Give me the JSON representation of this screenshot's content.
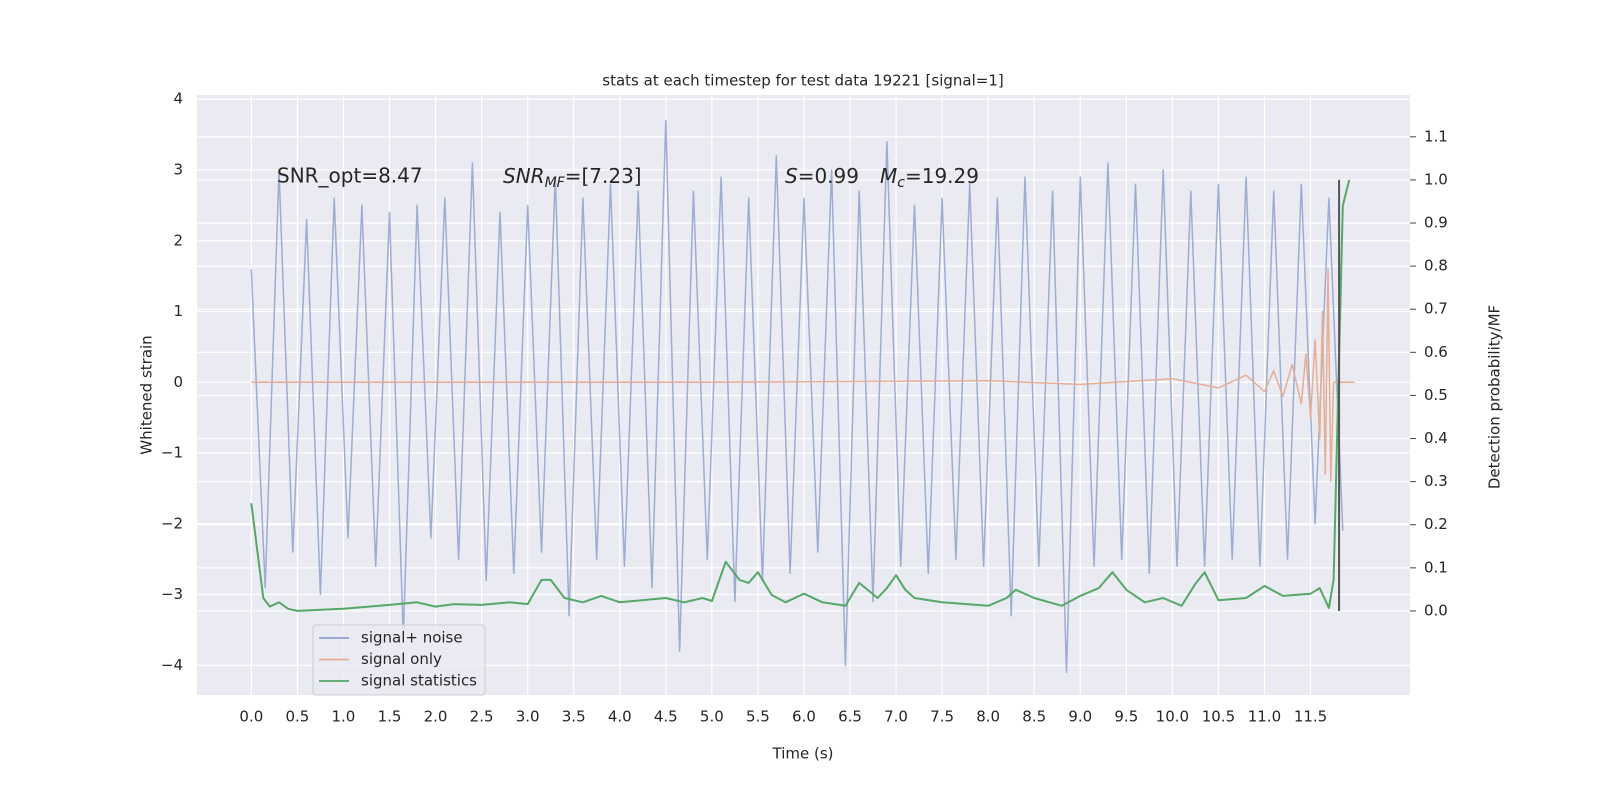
{
  "chart_data": {
    "type": "line",
    "title": "stats at each timestep for test data 19221 [signal=1]",
    "xlabel": "Time (s)",
    "ylabel": "Whitened strain",
    "y2label": "Detection probability/MF",
    "snr_opt": "SNR_opt=8.47",
    "snr_mf": {
      "base": "SNR",
      "sub": "MF",
      "tail": "=[7.23]"
    },
    "s_stat": {
      "base": "S",
      "tail": "=0.99"
    },
    "chirp_mass": {
      "base": "M",
      "sub": "c",
      "tail": "=19.29"
    },
    "xlim": [
      -0.59,
      12.58
    ],
    "ylim": [
      -4.42,
      4.06
    ],
    "y2lim": [
      -0.195,
      1.197
    ],
    "xticks": [
      {
        "value": 0,
        "label": "0.0"
      },
      0.5,
      {
        "value": 1,
        "label": "1.0"
      },
      1.5,
      {
        "value": 2,
        "label": "2.0"
      },
      2.5,
      {
        "value": 3,
        "label": "3.0"
      },
      3.5,
      {
        "value": 4,
        "label": "4.0"
      },
      4.5,
      {
        "value": 5,
        "label": "5.0"
      },
      5.5,
      {
        "value": 6,
        "label": "6.0"
      },
      6.5,
      {
        "value": 7,
        "label": "7.0"
      },
      7.5,
      {
        "value": 8,
        "label": "8.0"
      },
      8.5,
      {
        "value": 9,
        "label": "9.0"
      },
      9.5,
      {
        "value": 10,
        "label": "10.0"
      },
      10.5,
      {
        "value": 11,
        "label": "11.0"
      },
      11.5
    ],
    "yticks": [
      {
        "value": -4,
        "label": "−4"
      },
      {
        "value": -3,
        "label": "−3"
      },
      {
        "value": -2,
        "label": "−2"
      },
      {
        "value": -1,
        "label": "−1"
      },
      0,
      1,
      2,
      3,
      4
    ],
    "y2ticks": [
      {
        "value": 0,
        "label": "0.0"
      },
      0.1,
      0.2,
      0.3,
      0.4,
      0.5,
      0.6,
      0.7,
      0.8,
      0.9,
      {
        "value": 1,
        "label": "1.0"
      },
      1.1
    ],
    "grid": true,
    "legend": "lower left",
    "series": [
      {
        "name": "signal+ noise",
        "color": "#8ea1cc",
        "x": [
          0,
          0.15,
          0.3,
          0.45,
          0.6,
          0.75,
          0.9,
          1.05,
          1.2,
          1.35,
          1.5,
          1.65,
          1.8,
          1.95,
          2.1,
          2.25,
          2.4,
          2.55,
          2.7,
          2.85,
          3,
          3.15,
          3.3,
          3.45,
          3.6,
          3.75,
          3.9,
          4.05,
          4.2,
          4.35,
          4.5,
          4.65,
          4.8,
          4.95,
          5.1,
          5.25,
          5.4,
          5.55,
          5.7,
          5.85,
          6,
          6.15,
          6.3,
          6.45,
          6.6,
          6.75,
          6.9,
          7.05,
          7.2,
          7.35,
          7.5,
          7.65,
          7.8,
          7.95,
          8.1,
          8.25,
          8.4,
          8.55,
          8.7,
          8.85,
          9,
          9.15,
          9.3,
          9.45,
          9.6,
          9.75,
          9.9,
          10.05,
          10.2,
          10.35,
          10.5,
          10.65,
          10.8,
          10.95,
          11.1,
          11.25,
          11.4,
          11.55,
          11.7,
          11.85
        ],
        "values": [
          1.6,
          -2.9,
          3.0,
          -2.4,
          2.3,
          -3.0,
          2.6,
          -2.2,
          2.5,
          -2.6,
          2.4,
          -3.6,
          2.5,
          -2.2,
          2.6,
          -2.5,
          3.1,
          -2.8,
          2.4,
          -2.7,
          2.5,
          -2.4,
          2.9,
          -3.3,
          2.6,
          -2.5,
          2.8,
          -2.6,
          2.7,
          -2.9,
          3.7,
          -3.8,
          2.7,
          -2.5,
          2.9,
          -3.1,
          2.6,
          -2.8,
          3.2,
          -2.7,
          2.6,
          -2.4,
          3.0,
          -4.0,
          2.7,
          -3.1,
          3.4,
          -2.6,
          2.5,
          -2.7,
          2.6,
          -2.5,
          2.8,
          -2.6,
          2.6,
          -3.3,
          2.9,
          -2.6,
          2.7,
          -4.1,
          2.9,
          -2.6,
          3.1,
          -2.5,
          2.8,
          -2.7,
          3.0,
          -2.6,
          2.7,
          -2.6,
          2.8,
          -2.5,
          2.9,
          -2.6,
          2.7,
          -2.5,
          2.8,
          -2.0,
          2.6,
          -2.1
        ]
      },
      {
        "name": "signal only",
        "color": "#e5ae95",
        "x": [
          0,
          5,
          8,
          9,
          10,
          10.5,
          10.8,
          11,
          11.1,
          11.2,
          11.3,
          11.4,
          11.45,
          11.5,
          11.55,
          11.6,
          11.63,
          11.66,
          11.69,
          11.72,
          11.75,
          11.98
        ],
        "values": [
          0,
          0,
          0.02,
          -0.03,
          0.05,
          -0.08,
          0.1,
          -0.13,
          0.16,
          -0.2,
          0.25,
          -0.3,
          0.4,
          -0.5,
          0.6,
          -0.8,
          1.0,
          -1.3,
          1.6,
          -1.4,
          0,
          0
        ]
      },
      {
        "name": "signal statistics",
        "color": "#55a868",
        "axis": "y2",
        "x": [
          0,
          0.13,
          0.2,
          0.3,
          0.4,
          0.5,
          1,
          1.5,
          1.8,
          2,
          2.2,
          2.5,
          2.8,
          3,
          3.15,
          3.25,
          3.4,
          3.6,
          3.8,
          4,
          4.5,
          4.7,
          4.9,
          5,
          5.15,
          5.3,
          5.4,
          5.5,
          5.65,
          5.8,
          6,
          6.2,
          6.45,
          6.6,
          6.8,
          6.9,
          7,
          7.1,
          7.2,
          7.5,
          8,
          8.2,
          8.3,
          8.5,
          8.8,
          9,
          9.2,
          9.35,
          9.5,
          9.7,
          9.9,
          10.1,
          10.25,
          10.35,
          10.5,
          10.8,
          11,
          11.2,
          11.5,
          11.6,
          11.7,
          11.75,
          11.85,
          11.92
        ],
        "values": [
          0.25,
          0.03,
          0.01,
          0.02,
          0.005,
          0,
          0.005,
          0.014,
          0.02,
          0.01,
          0.016,
          0.014,
          0.02,
          0.016,
          0.072,
          0.072,
          0.03,
          0.02,
          0.035,
          0.02,
          0.03,
          0.02,
          0.03,
          0.023,
          0.114,
          0.072,
          0.065,
          0.09,
          0.037,
          0.02,
          0.04,
          0.02,
          0.012,
          0.065,
          0.03,
          0.053,
          0.083,
          0.049,
          0.03,
          0.02,
          0.012,
          0.03,
          0.049,
          0.03,
          0.012,
          0.035,
          0.053,
          0.09,
          0.049,
          0.02,
          0.03,
          0.012,
          0.063,
          0.09,
          0.025,
          0.03,
          0.058,
          0.035,
          0.04,
          0.053,
          0.007,
          0.072,
          0.94,
          1.0
        ]
      }
    ],
    "vline": {
      "x": 11.81,
      "range": [
        0,
        1
      ],
      "color": "#555555",
      "axis": "y2"
    }
  }
}
